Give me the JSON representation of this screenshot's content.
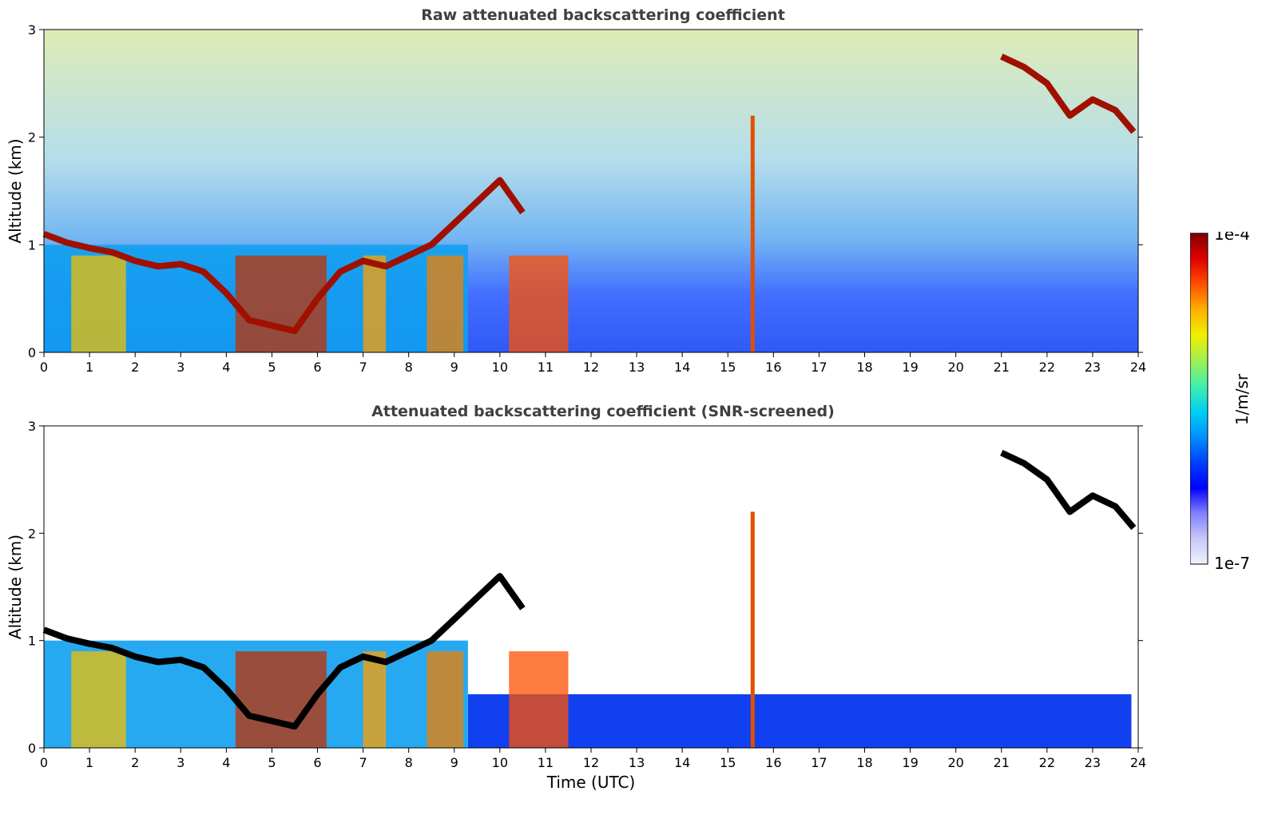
{
  "chart_data": [
    {
      "type": "heatmap",
      "title": "Raw attenuated backscattering coefficient",
      "xlabel": "",
      "ylabel": "Altitude (km)",
      "xlim": [
        0,
        24
      ],
      "ylim": [
        0,
        3
      ],
      "x_ticks": [
        "0",
        "1",
        "2",
        "3",
        "4",
        "5",
        "6",
        "7",
        "8",
        "9",
        "10",
        "11",
        "12",
        "13",
        "14",
        "15",
        "16",
        "17",
        "18",
        "19",
        "20",
        "21",
        "22",
        "23",
        "24"
      ],
      "y_ticks": [
        "0",
        "1",
        "2",
        "3"
      ],
      "grid": false,
      "cloud_layers": [
        {
          "x": [
            0,
            0.5,
            1,
            1.5,
            2,
            2.5,
            3,
            3.5,
            4,
            4.5,
            5,
            5.5,
            6,
            6.5,
            7,
            7.5,
            8,
            8.5,
            9,
            9.5,
            10,
            10.5
          ],
          "y": [
            1.1,
            1.02,
            0.97,
            0.93,
            0.85,
            0.8,
            0.82,
            0.75,
            0.55,
            0.3,
            0.25,
            0.2,
            0.5,
            0.75,
            0.85,
            0.8,
            0.9,
            1.0,
            1.2,
            1.4,
            1.6,
            1.3
          ]
        },
        {
          "x": [
            21,
            21.5,
            22,
            22.5,
            23,
            23.5,
            23.9
          ],
          "y": [
            2.75,
            2.65,
            2.5,
            2.2,
            2.35,
            2.25,
            2.05
          ]
        }
      ]
    },
    {
      "type": "heatmap",
      "title": "Attenuated backscattering coefficient (SNR-screened)",
      "xlabel": "Time (UTC)",
      "ylabel": "Altitude (km)",
      "xlim": [
        0,
        24
      ],
      "ylim": [
        0,
        3
      ],
      "x_ticks": [
        "0",
        "1",
        "2",
        "3",
        "4",
        "5",
        "6",
        "7",
        "8",
        "9",
        "10",
        "11",
        "12",
        "13",
        "14",
        "15",
        "16",
        "17",
        "18",
        "19",
        "20",
        "21",
        "22",
        "23",
        "24"
      ],
      "y_ticks": [
        "0",
        "1",
        "2",
        "3"
      ],
      "grid": false
    }
  ],
  "colorbar": {
    "label": "1/m/sr",
    "max_label": "1e-4",
    "min_label": "1e-7",
    "colors": [
      "#f0f0ff",
      "#c8c8f8",
      "#8080ff",
      "#0000ff",
      "#0040ff",
      "#0090ff",
      "#00d0f0",
      "#40f0b0",
      "#a0f050",
      "#f0f000",
      "#ffb000",
      "#ff5000",
      "#e00000",
      "#800000"
    ]
  }
}
